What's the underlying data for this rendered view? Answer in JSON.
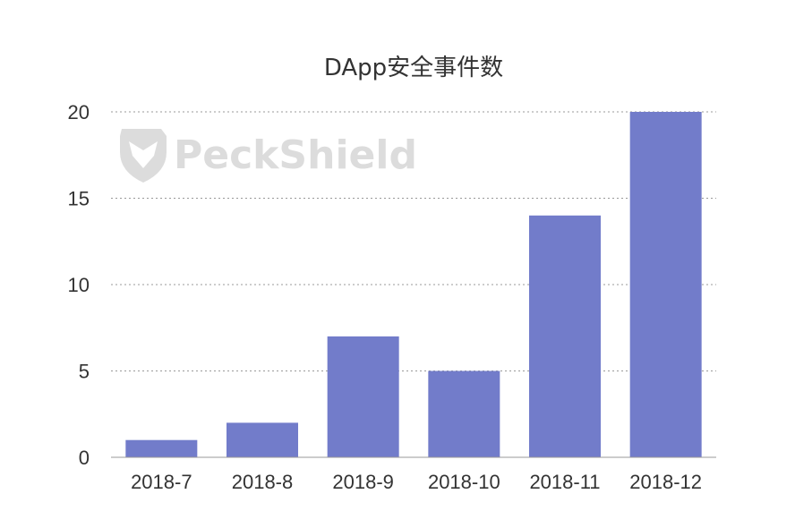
{
  "chart_data": {
    "type": "bar",
    "title": "DApp安全事件数",
    "categories": [
      "2018-7",
      "2018-8",
      "2018-9",
      "2018-10",
      "2018-11",
      "2018-12"
    ],
    "values": [
      1,
      2,
      7,
      5,
      14,
      20
    ],
    "xlabel": "",
    "ylabel": "",
    "ylim": [
      0,
      20
    ],
    "yticks": [
      0,
      5,
      10,
      15,
      20
    ],
    "grid": true,
    "grid_style": "dotted",
    "legend": "none",
    "bar_color": "#727cca"
  },
  "watermark": {
    "text": "PeckShield",
    "icon": "shield-logo-icon"
  }
}
